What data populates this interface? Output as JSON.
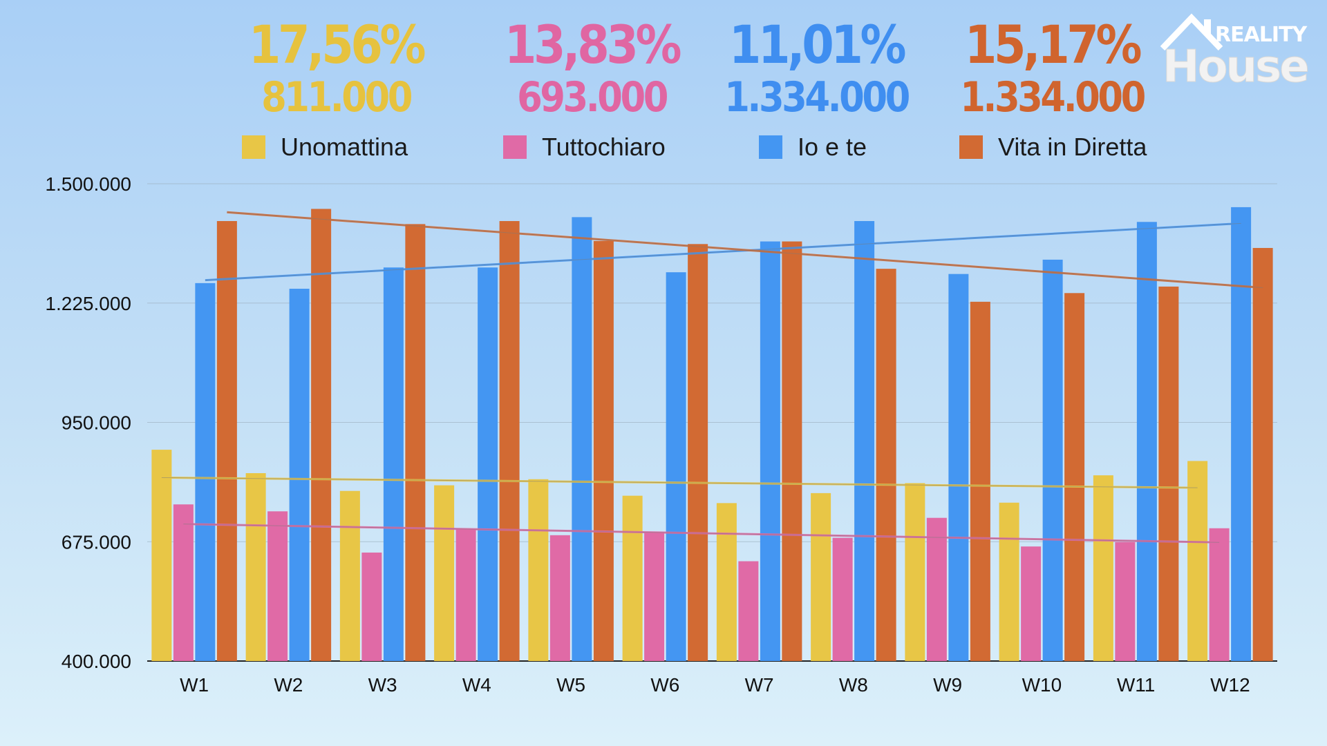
{
  "logo": {
    "line1": "REALITY",
    "line2": "House"
  },
  "stats": [
    {
      "pct": "17,56%",
      "value": "811.000",
      "color": "#e6c23e"
    },
    {
      "pct": "13,83%",
      "value": "693.000",
      "color": "#e066a2"
    },
    {
      "pct": "11,01%",
      "value": "1.334.000",
      "color": "#3f8ef0"
    },
    {
      "pct": "15,17%",
      "value": "1.334.000",
      "color": "#d0642e"
    }
  ],
  "chart_data": {
    "type": "bar",
    "title": "",
    "xlabel": "",
    "ylabel": "",
    "ylim": [
      400000,
      1500000
    ],
    "yticks": [
      400000,
      675000,
      950000,
      1225000,
      1500000
    ],
    "ytick_labels": [
      "400.000",
      "675.000",
      "950.000",
      "1.225.000",
      "1.500.000"
    ],
    "grid": true,
    "legend_position": "top",
    "trendlines": true,
    "categories": [
      "W1",
      "W2",
      "W3",
      "W4",
      "W5",
      "W6",
      "W7",
      "W8",
      "W9",
      "W10",
      "W11",
      "W12"
    ],
    "series": [
      {
        "name": "Unomattina",
        "color": "#e8c646",
        "values": [
          887000,
          833000,
          792000,
          805000,
          819000,
          781000,
          764000,
          787000,
          810000,
          765000,
          828000,
          861000
        ]
      },
      {
        "name": "Tuttochiaro",
        "color": "#e06aa6",
        "values": [
          761000,
          745000,
          650000,
          704000,
          690000,
          697000,
          630000,
          684000,
          730000,
          664000,
          674000,
          706000
        ]
      },
      {
        "name": "Io e te",
        "color": "#4496f2",
        "values": [
          1271000,
          1258000,
          1307000,
          1307000,
          1423000,
          1296000,
          1367000,
          1414000,
          1292000,
          1325000,
          1412000,
          1446000
        ]
      },
      {
        "name": "Vita in Diretta",
        "color": "#d26a33",
        "values": [
          1414000,
          1442000,
          1407000,
          1414000,
          1368000,
          1361000,
          1367000,
          1304000,
          1228000,
          1248000,
          1263000,
          1352000
        ]
      }
    ]
  }
}
